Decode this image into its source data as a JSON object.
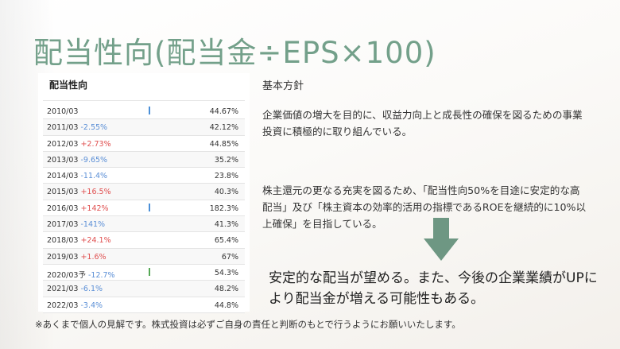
{
  "title": "配当性向(配当金÷EPS×100)",
  "panel": {
    "title": "配当性向",
    "rows": [
      {
        "year": "2010/03",
        "change": "",
        "dir": "",
        "value": "44.67%",
        "bar": "blue"
      },
      {
        "year": "2011/03",
        "change": "-2.55%",
        "dir": "down",
        "value": "42.12%",
        "bar": ""
      },
      {
        "year": "2012/03",
        "change": "+2.73%",
        "dir": "up",
        "value": "44.85%",
        "bar": ""
      },
      {
        "year": "2013/03",
        "change": "-9.65%",
        "dir": "down",
        "value": "35.2%",
        "bar": ""
      },
      {
        "year": "2014/03",
        "change": "-11.4%",
        "dir": "down",
        "value": "23.8%",
        "bar": ""
      },
      {
        "year": "2015/03",
        "change": "+16.5%",
        "dir": "up",
        "value": "40.3%",
        "bar": ""
      },
      {
        "year": "2016/03",
        "change": "+142%",
        "dir": "up",
        "value": "182.3%",
        "bar": "blue"
      },
      {
        "year": "2017/03",
        "change": "-141%",
        "dir": "down",
        "value": "41.3%",
        "bar": ""
      },
      {
        "year": "2018/03",
        "change": "+24.1%",
        "dir": "up",
        "value": "65.4%",
        "bar": ""
      },
      {
        "year": "2019/03",
        "change": "+1.6%",
        "dir": "up",
        "value": "67%",
        "bar": ""
      },
      {
        "year": "2020/03予",
        "change": "-12.7%",
        "dir": "down",
        "value": "54.3%",
        "bar": "green"
      },
      {
        "year": "2021/03",
        "change": "-6.1%",
        "dir": "down",
        "value": "48.2%",
        "bar": ""
      },
      {
        "year": "2022/03",
        "change": "-3.4%",
        "dir": "down",
        "value": "44.8%",
        "bar": ""
      }
    ]
  },
  "policy": {
    "heading": "基本方針",
    "paragraph1": "企業価値の増大を目的に、収益力向上と成長性の確保を図るための事業投資に積極的に取り組んでいる。",
    "paragraph2": "株主還元の更なる充実を図るため、「配当性向50%を目途に安定的な高配当」及び「株主資本の効率的活用の指標であるROEを継続的に10%以上確保」を目指している。"
  },
  "conclusion": "安定的な配当が望める。また、今後の企業業績がUPにより配当金が増える可能性もある。",
  "disclaimer": "※あくまで個人の見解です。株式投資は必ずご自身の責任と判断のもとで行うようにお願いいたします。",
  "colors": {
    "title": "#73a08a",
    "arrow": "#6e9783",
    "up": "#e05050",
    "down": "#5b8fd6"
  }
}
